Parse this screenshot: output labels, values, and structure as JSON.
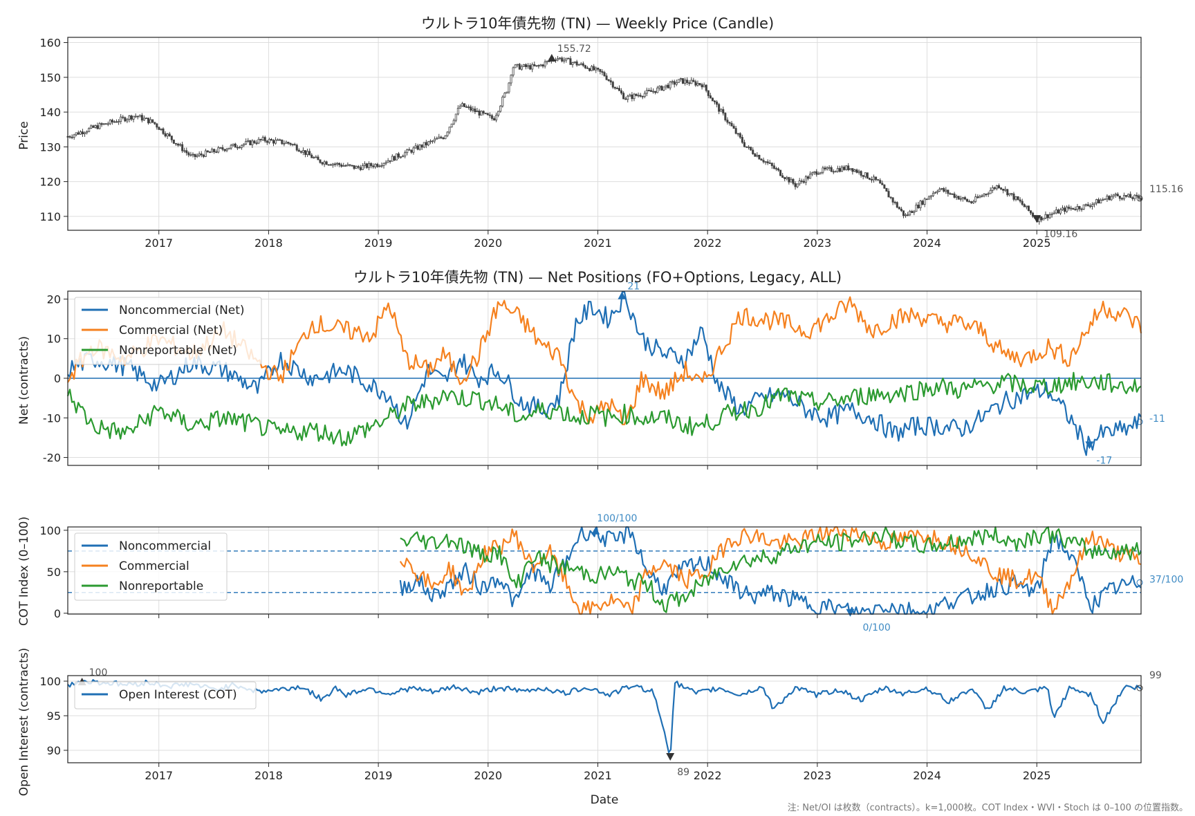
{
  "colors": {
    "price": "#404040",
    "noncommercial": "#1f6fb4",
    "commercial": "#f5811f",
    "nonreportable": "#2b9a30",
    "oi": "#1f6fb4",
    "grid": "#dddddd",
    "zero_line": "#1f6fb4"
  },
  "x_axis": {
    "label": "Date",
    "tick_labels": [
      "2017",
      "2018",
      "2019",
      "2020",
      "2021",
      "2022",
      "2023",
      "2024",
      "2025"
    ],
    "range": [
      2016.17,
      2025.95
    ]
  },
  "chart_data": [
    {
      "id": "price",
      "type": "candlestick",
      "title": "ウルトラ10年債先物 (TN) — Weekly Price (Candle)",
      "ylabel": "Price",
      "ylim": [
        106,
        161.5
      ],
      "y_ticks": [
        "110",
        "120",
        "130",
        "140",
        "150",
        "160"
      ],
      "y_tick_values": [
        110,
        120,
        130,
        140,
        150,
        160
      ],
      "anchors": {
        "x": [
          2016.17,
          2016.45,
          2016.78,
          2016.95,
          2017.3,
          2017.65,
          2017.95,
          2018.2,
          2018.45,
          2018.8,
          2019.0,
          2019.3,
          2019.6,
          2019.75,
          2020.05,
          2020.18,
          2020.22,
          2020.45,
          2020.62,
          2020.9,
          2021.05,
          2021.25,
          2021.5,
          2021.75,
          2021.95,
          2022.1,
          2022.35,
          2022.6,
          2022.8,
          2023.0,
          2023.3,
          2023.55,
          2023.8,
          2023.95,
          2024.1,
          2024.4,
          2024.65,
          2024.85,
          2025.0,
          2025.25,
          2025.45,
          2025.7,
          2025.95
        ],
        "y": [
          133,
          136,
          139,
          137,
          127,
          130,
          132,
          131,
          126,
          124,
          125,
          129,
          133,
          142,
          138,
          147,
          153,
          153,
          155.7,
          153,
          151,
          144,
          146,
          149,
          148,
          141,
          130,
          124,
          119,
          123,
          124,
          120,
          110,
          114,
          118,
          114,
          119,
          114,
          109.2,
          112,
          113,
          116,
          115.2
        ]
      },
      "annotations": {
        "high_label": "155.72",
        "high_value": 155.72,
        "high_x": 2020.58,
        "low_label": "109.16",
        "low_value": 109.16,
        "low_x": 2025.0,
        "last_label": "115.16",
        "last_value": 115.16
      }
    },
    {
      "id": "net",
      "type": "line",
      "title": "ウルトラ10年債先物 (TN) — Net Positions (FO+Options, Legacy, ALL)",
      "ylabel": "Net (contracts)",
      "ylim": [
        -22,
        22
      ],
      "y_ticks": [
        "20",
        "10",
        "0",
        "-10",
        "-20"
      ],
      "y_tick_values": [
        20,
        10,
        0,
        -10,
        -20
      ],
      "series": [
        {
          "name": "Noncommercial (Net)",
          "key": "noncommercial",
          "x": [
            2016.17,
            2016.4,
            2016.7,
            2017.0,
            2017.3,
            2017.6,
            2017.9,
            2018.1,
            2018.4,
            2018.7,
            2018.95,
            2019.1,
            2019.25,
            2019.45,
            2019.6,
            2019.75,
            2019.9,
            2020.1,
            2020.3,
            2020.5,
            2020.65,
            2020.8,
            2020.95,
            2021.1,
            2021.25,
            2021.4,
            2021.6,
            2021.8,
            2021.95,
            2022.1,
            2022.3,
            2022.5,
            2022.7,
            2022.9,
            2023.1,
            2023.3,
            2023.5,
            2023.7,
            2023.9,
            2024.1,
            2024.3,
            2024.5,
            2024.7,
            2024.9,
            2025.1,
            2025.3,
            2025.45,
            2025.6,
            2025.8,
            2025.95
          ],
          "y": [
            2,
            5,
            3,
            -2,
            4,
            2,
            -3,
            5,
            0,
            2,
            -2,
            -4,
            -12,
            2,
            -1,
            5,
            0,
            2,
            -6,
            -8,
            -5,
            14,
            18,
            15,
            21,
            10,
            6,
            5,
            12,
            -2,
            -8,
            -5,
            -4,
            -8,
            -10,
            -8,
            -10,
            -14,
            -12,
            -12,
            -13,
            -10,
            -6,
            -4,
            -3,
            -10,
            -17,
            -14,
            -13,
            -11
          ]
        },
        {
          "name": "Commercial (Net)",
          "key": "commercial",
          "x": [
            2016.17,
            2016.4,
            2016.7,
            2017.0,
            2017.3,
            2017.6,
            2017.9,
            2018.1,
            2018.4,
            2018.7,
            2018.95,
            2019.1,
            2019.25,
            2019.45,
            2019.6,
            2019.75,
            2019.9,
            2020.1,
            2020.3,
            2020.5,
            2020.65,
            2020.8,
            2020.95,
            2021.1,
            2021.25,
            2021.4,
            2021.6,
            2021.8,
            2021.95,
            2022.1,
            2022.3,
            2022.5,
            2022.7,
            2022.9,
            2023.1,
            2023.3,
            2023.5,
            2023.7,
            2023.9,
            2024.1,
            2024.3,
            2024.5,
            2024.7,
            2024.9,
            2025.1,
            2025.3,
            2025.45,
            2025.6,
            2025.8,
            2025.95
          ],
          "y": [
            0,
            8,
            5,
            10,
            6,
            12,
            4,
            0,
            14,
            12,
            11,
            19,
            5,
            2,
            6,
            0,
            5,
            19,
            15,
            8,
            6,
            -6,
            -10,
            -6,
            -12,
            0,
            -4,
            2,
            -2,
            6,
            16,
            15,
            14,
            12,
            15,
            19,
            12,
            15,
            16,
            14,
            14,
            12,
            6,
            5,
            8,
            5,
            12,
            18,
            16,
            13
          ]
        },
        {
          "name": "Nonreportable (Net)",
          "key": "nonreportable",
          "x": [
            2016.17,
            2016.4,
            2016.7,
            2017.0,
            2017.3,
            2017.6,
            2017.9,
            2018.1,
            2018.4,
            2018.7,
            2018.95,
            2019.1,
            2019.25,
            2019.45,
            2019.6,
            2019.75,
            2019.9,
            2020.1,
            2020.3,
            2020.5,
            2020.65,
            2020.8,
            2020.95,
            2021.1,
            2021.25,
            2021.4,
            2021.6,
            2021.8,
            2021.95,
            2022.1,
            2022.3,
            2022.5,
            2022.7,
            2022.9,
            2023.1,
            2023.3,
            2023.5,
            2023.7,
            2023.9,
            2024.1,
            2024.3,
            2024.5,
            2024.7,
            2024.9,
            2025.1,
            2025.3,
            2025.45,
            2025.6,
            2025.8,
            2025.95
          ],
          "y": [
            -4,
            -12,
            -14,
            -8,
            -12,
            -10,
            -12,
            -14,
            -13,
            -15,
            -12,
            -10,
            -7,
            -6,
            -4,
            -5,
            -5,
            -7,
            -10,
            -8,
            -8,
            -10,
            -9,
            -10,
            -9,
            -10,
            -10,
            -12,
            -12,
            -10,
            -8,
            -7,
            -4,
            -6,
            -6,
            -5,
            -4,
            -4,
            -3,
            -2,
            -3,
            -2,
            -1,
            -2,
            -2,
            -1,
            -1,
            -1,
            -2,
            -2
          ]
        }
      ],
      "legend": "upper-left",
      "annotations": {
        "high_label": "21",
        "high_value": 21,
        "high_x": 2021.22,
        "low_label": "-17",
        "low_value": -17,
        "low_x": 2025.48,
        "last_label": "-11",
        "last_value": -11
      }
    },
    {
      "id": "cot",
      "type": "line",
      "ylabel": "COT Index (0–100)",
      "ylim": [
        -1,
        104
      ],
      "y_ticks": [
        "100",
        "50",
        "0"
      ],
      "y_tick_values": [
        100,
        50,
        0
      ],
      "hlines": [
        75,
        25
      ],
      "series": [
        {
          "name": "Noncommercial",
          "key": "noncommercial",
          "x": [
            2019.2,
            2019.35,
            2019.5,
            2019.65,
            2019.8,
            2019.95,
            2020.1,
            2020.25,
            2020.4,
            2020.55,
            2020.7,
            2020.85,
            2021.0,
            2021.15,
            2021.3,
            2021.45,
            2021.6,
            2021.8,
            2022.0,
            2022.2,
            2022.4,
            2022.6,
            2022.8,
            2023.0,
            2023.2,
            2023.4,
            2023.6,
            2023.8,
            2024.0,
            2024.2,
            2024.4,
            2024.6,
            2024.8,
            2025.0,
            2025.15,
            2025.3,
            2025.5,
            2025.7,
            2025.95
          ],
          "y": [
            30,
            40,
            20,
            35,
            50,
            30,
            45,
            10,
            55,
            30,
            60,
            100,
            95,
            85,
            100,
            50,
            30,
            55,
            60,
            35,
            20,
            25,
            15,
            10,
            5,
            0,
            10,
            5,
            0,
            15,
            20,
            30,
            35,
            25,
            95,
            70,
            10,
            30,
            37
          ]
        },
        {
          "name": "Commercial",
          "key": "commercial",
          "x": [
            2019.2,
            2019.35,
            2019.5,
            2019.65,
            2019.8,
            2019.95,
            2020.1,
            2020.25,
            2020.4,
            2020.55,
            2020.7,
            2020.85,
            2021.0,
            2021.15,
            2021.3,
            2021.45,
            2021.6,
            2021.8,
            2022.0,
            2022.2,
            2022.4,
            2022.6,
            2022.8,
            2023.0,
            2023.2,
            2023.4,
            2023.6,
            2023.8,
            2024.0,
            2024.2,
            2024.4,
            2024.6,
            2024.8,
            2025.0,
            2025.15,
            2025.3,
            2025.5,
            2025.7,
            2025.95
          ],
          "y": [
            70,
            50,
            30,
            55,
            20,
            70,
            80,
            95,
            55,
            75,
            40,
            0,
            10,
            15,
            0,
            50,
            60,
            40,
            50,
            90,
            95,
            85,
            85,
            95,
            100,
            95,
            85,
            90,
            95,
            85,
            75,
            50,
            40,
            45,
            5,
            40,
            95,
            75,
            63
          ]
        },
        {
          "name": "Nonreportable",
          "key": "nonreportable",
          "x": [
            2019.2,
            2019.35,
            2019.5,
            2019.65,
            2019.8,
            2019.95,
            2020.1,
            2020.25,
            2020.4,
            2020.55,
            2020.7,
            2020.85,
            2021.0,
            2021.15,
            2021.3,
            2021.45,
            2021.6,
            2021.8,
            2022.0,
            2022.2,
            2022.4,
            2022.6,
            2022.8,
            2023.0,
            2023.2,
            2023.4,
            2023.6,
            2023.8,
            2024.0,
            2024.2,
            2024.4,
            2024.6,
            2024.8,
            2025.0,
            2025.15,
            2025.3,
            2025.5,
            2025.7,
            2025.95
          ],
          "y": [
            85,
            90,
            85,
            90,
            80,
            70,
            75,
            30,
            70,
            60,
            55,
            50,
            45,
            50,
            40,
            35,
            10,
            20,
            40,
            60,
            65,
            70,
            80,
            85,
            85,
            90,
            95,
            85,
            80,
            85,
            90,
            95,
            85,
            95,
            95,
            85,
            75,
            75,
            75
          ]
        }
      ],
      "legend": "upper-left",
      "annotations": {
        "high_label": "100/100",
        "high_value": 100,
        "high_x": 2020.98,
        "low_label": "0/100",
        "low_value": 0,
        "low_x": 2023.3,
        "last_label": "37/100",
        "last_value": 37
      }
    },
    {
      "id": "oi",
      "type": "line",
      "ylabel": "Open Interest (contracts)",
      "ylim": [
        88.2,
        100.8
      ],
      "y_ticks": [
        "100",
        "95",
        "90"
      ],
      "y_tick_values": [
        100,
        95,
        90
      ],
      "series": [
        {
          "name": "Open Interest (COT)",
          "key": "oi",
          "x": [
            2016.17,
            2016.3,
            2016.5,
            2016.7,
            2016.9,
            2017.1,
            2017.3,
            2017.5,
            2017.7,
            2017.9,
            2018.1,
            2018.3,
            2018.5,
            2018.6,
            2018.7,
            2018.9,
            2019.1,
            2019.3,
            2019.5,
            2019.7,
            2019.9,
            2020.1,
            2020.3,
            2020.5,
            2020.7,
            2020.9,
            2021.1,
            2021.3,
            2021.5,
            2021.62,
            2021.66,
            2021.7,
            2021.9,
            2022.1,
            2022.3,
            2022.5,
            2022.6,
            2022.8,
            2023.0,
            2023.2,
            2023.4,
            2023.6,
            2023.8,
            2024.0,
            2024.2,
            2024.4,
            2024.55,
            2024.7,
            2024.9,
            2025.1,
            2025.15,
            2025.3,
            2025.5,
            2025.6,
            2025.8,
            2025.95
          ],
          "y": [
            99.5,
            100,
            99.8,
            99.5,
            99.8,
            99.3,
            99.6,
            98.8,
            99.5,
            98.5,
            98.8,
            99.2,
            97.2,
            99.2,
            98.0,
            99.0,
            98.2,
            99.0,
            98.4,
            99.2,
            98.3,
            99.1,
            98.5,
            99.0,
            98.2,
            99.2,
            98.0,
            99.3,
            98.6,
            92.0,
            89.0,
            99.8,
            98.2,
            99.0,
            98.0,
            99.2,
            96.0,
            99.0,
            98.0,
            98.8,
            97.2,
            99.0,
            98.2,
            99.0,
            97.0,
            99.0,
            95.8,
            99.0,
            98.3,
            99.0,
            94.5,
            99.0,
            98.0,
            94.0,
            99.2,
            99.0
          ]
        }
      ],
      "legend": "upper-left",
      "annotations": {
        "high_label": "100",
        "high_value": 100,
        "high_x": 2016.3,
        "low_label": "89",
        "low_value": 89,
        "low_x": 2021.66,
        "last_label": "99",
        "last_value": 99
      }
    }
  ],
  "footnote": "注: Net/OI は枚数（contracts）。k=1,000枚。COT Index・WVI・Stoch は 0–100 の位置指数。"
}
